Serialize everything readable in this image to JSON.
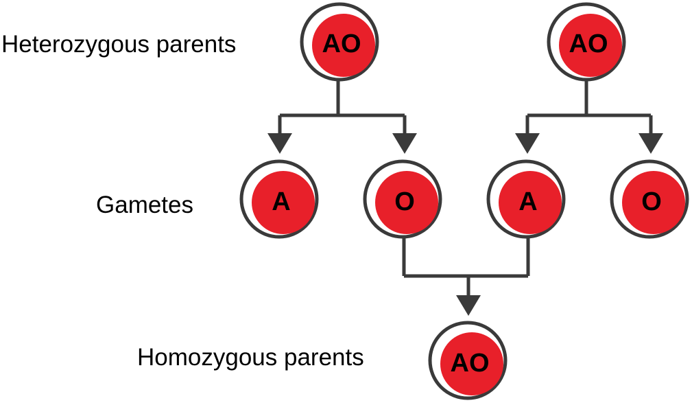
{
  "labels": {
    "top_row": "Heterozygous parents",
    "middle_row": "Gametes",
    "bottom_row": "Homozygous parents"
  },
  "cells": {
    "parent_left": "AO",
    "parent_right": "AO",
    "gamete_1": "A",
    "gamete_2": "O",
    "gamete_3": "A",
    "gamete_4": "O",
    "offspring": "AO"
  },
  "colors": {
    "cell_fill": "#e8202a",
    "cell_ring": "#3a3a3a",
    "connector": "#3a3a3a",
    "text": "#000000"
  }
}
